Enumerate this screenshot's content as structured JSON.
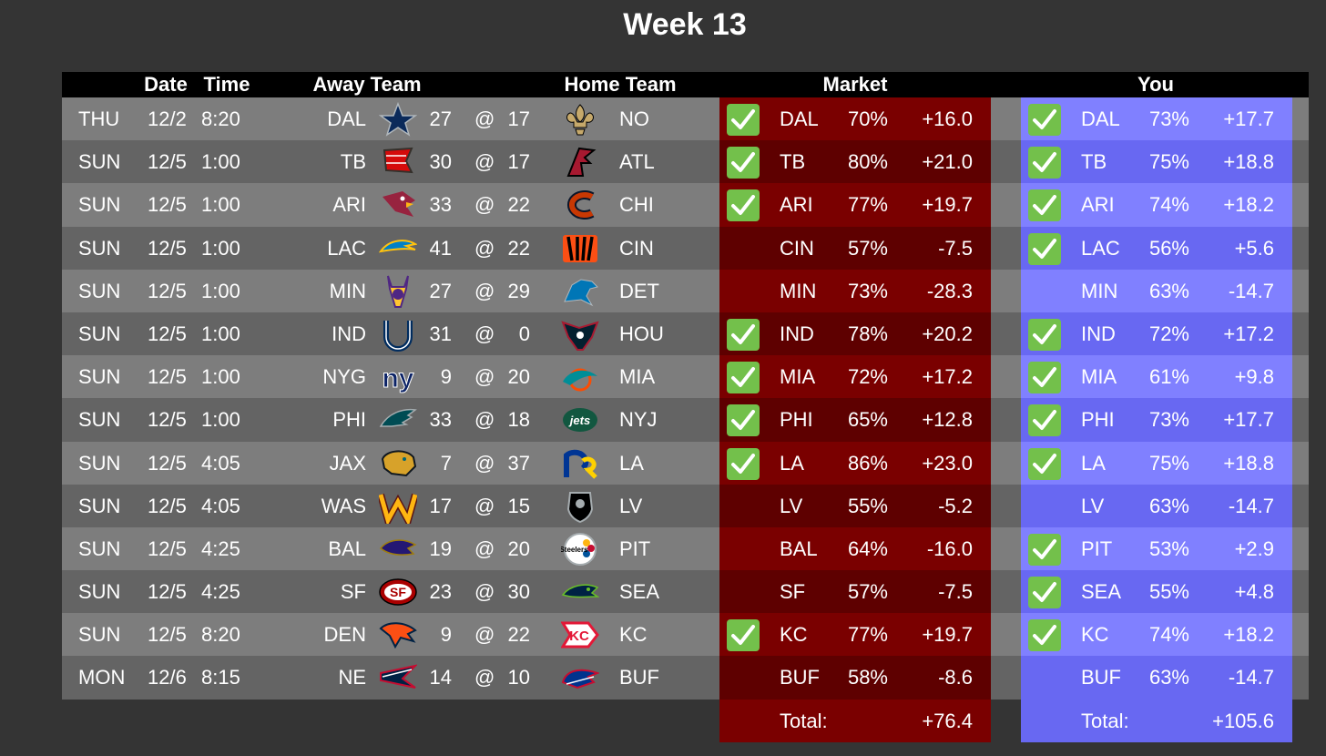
{
  "title": "Week 13",
  "headers": {
    "date": "Date",
    "time": "Time",
    "away": "Away Team",
    "home": "Home Team",
    "market": "Market",
    "you": "You"
  },
  "games": [
    {
      "day": "THU",
      "date": "12/2",
      "time": "8:20",
      "away": "DAL",
      "away_score": "27",
      "at": "@",
      "home_score": "17",
      "home": "NO",
      "away_logo": "star-logo-icon",
      "home_logo": "fleur-de-lis-logo-icon"
    },
    {
      "day": "SUN",
      "date": "12/5",
      "time": "1:00",
      "away": "TB",
      "away_score": "30",
      "at": "@",
      "home_score": "17",
      "home": "ATL",
      "away_logo": "flag-logo-icon",
      "home_logo": "falcon-logo-icon"
    },
    {
      "day": "SUN",
      "date": "12/5",
      "time": "1:00",
      "away": "ARI",
      "away_score": "33",
      "at": "@",
      "home_score": "22",
      "home": "CHI",
      "away_logo": "cardinal-logo-icon",
      "home_logo": "c-letter-logo-icon"
    },
    {
      "day": "SUN",
      "date": "12/5",
      "time": "1:00",
      "away": "LAC",
      "away_score": "41",
      "at": "@",
      "home_score": "22",
      "home": "CIN",
      "away_logo": "bolt-logo-icon",
      "home_logo": "stripes-logo-icon"
    },
    {
      "day": "SUN",
      "date": "12/5",
      "time": "1:00",
      "away": "MIN",
      "away_score": "27",
      "at": "@",
      "home_score": "29",
      "home": "DET",
      "away_logo": "viking-logo-icon",
      "home_logo": "lion-logo-icon"
    },
    {
      "day": "SUN",
      "date": "12/5",
      "time": "1:00",
      "away": "IND",
      "away_score": "31",
      "at": "@",
      "home_score": "0",
      "home": "HOU",
      "away_logo": "horseshoe-logo-icon",
      "home_logo": "bull-logo-icon"
    },
    {
      "day": "SUN",
      "date": "12/5",
      "time": "1:00",
      "away": "NYG",
      "away_score": "9",
      "at": "@",
      "home_score": "20",
      "home": "MIA",
      "away_logo": "ny-letters-logo-icon",
      "home_logo": "dolphin-logo-icon"
    },
    {
      "day": "SUN",
      "date": "12/5",
      "time": "1:00",
      "away": "PHI",
      "away_score": "33",
      "at": "@",
      "home_score": "18",
      "home": "NYJ",
      "away_logo": "eagle-logo-icon",
      "home_logo": "jets-logo-icon"
    },
    {
      "day": "SUN",
      "date": "12/5",
      "time": "4:05",
      "away": "JAX",
      "away_score": "7",
      "at": "@",
      "home_score": "37",
      "home": "LA",
      "away_logo": "jaguar-logo-icon",
      "home_logo": "ram-logo-icon"
    },
    {
      "day": "SUN",
      "date": "12/5",
      "time": "4:05",
      "away": "WAS",
      "away_score": "17",
      "at": "@",
      "home_score": "15",
      "home": "LV",
      "away_logo": "w-letter-logo-icon",
      "home_logo": "shield-logo-icon"
    },
    {
      "day": "SUN",
      "date": "12/5",
      "time": "4:25",
      "away": "BAL",
      "away_score": "19",
      "at": "@",
      "home_score": "20",
      "home": "PIT",
      "away_logo": "raven-logo-icon",
      "home_logo": "steeler-logo-icon"
    },
    {
      "day": "SUN",
      "date": "12/5",
      "time": "4:25",
      "away": "SF",
      "away_score": "23",
      "at": "@",
      "home_score": "30",
      "home": "SEA",
      "away_logo": "sf-oval-logo-icon",
      "home_logo": "seahawk-logo-icon"
    },
    {
      "day": "SUN",
      "date": "12/5",
      "time": "8:20",
      "away": "DEN",
      "away_score": "9",
      "at": "@",
      "home_score": "22",
      "home": "KC",
      "away_logo": "bronco-logo-icon",
      "home_logo": "arrowhead-logo-icon"
    },
    {
      "day": "MON",
      "date": "12/6",
      "time": "8:15",
      "away": "NE",
      "away_score": "14",
      "at": "@",
      "home_score": "10",
      "home": "BUF",
      "away_logo": "patriot-logo-icon",
      "home_logo": "buffalo-logo-icon"
    }
  ],
  "market": {
    "rows": [
      {
        "correct": true,
        "team": "DAL",
        "pct": "70%",
        "pts": "+16.0"
      },
      {
        "correct": true,
        "team": "TB",
        "pct": "80%",
        "pts": "+21.0"
      },
      {
        "correct": true,
        "team": "ARI",
        "pct": "77%",
        "pts": "+19.7"
      },
      {
        "correct": false,
        "team": "CIN",
        "pct": "57%",
        "pts": "-7.5"
      },
      {
        "correct": false,
        "team": "MIN",
        "pct": "73%",
        "pts": "-28.3"
      },
      {
        "correct": true,
        "team": "IND",
        "pct": "78%",
        "pts": "+20.2"
      },
      {
        "correct": true,
        "team": "MIA",
        "pct": "72%",
        "pts": "+17.2"
      },
      {
        "correct": true,
        "team": "PHI",
        "pct": "65%",
        "pts": "+12.8"
      },
      {
        "correct": true,
        "team": "LA",
        "pct": "86%",
        "pts": "+23.0"
      },
      {
        "correct": false,
        "team": "LV",
        "pct": "55%",
        "pts": "-5.2"
      },
      {
        "correct": false,
        "team": "BAL",
        "pct": "64%",
        "pts": "-16.0"
      },
      {
        "correct": false,
        "team": "SF",
        "pct": "57%",
        "pts": "-7.5"
      },
      {
        "correct": true,
        "team": "KC",
        "pct": "77%",
        "pts": "+19.7"
      },
      {
        "correct": false,
        "team": "BUF",
        "pct": "58%",
        "pts": "-8.6"
      }
    ],
    "total_label": "Total:",
    "total": "+76.4"
  },
  "you": {
    "rows": [
      {
        "correct": true,
        "team": "DAL",
        "pct": "73%",
        "pts": "+17.7"
      },
      {
        "correct": true,
        "team": "TB",
        "pct": "75%",
        "pts": "+18.8"
      },
      {
        "correct": true,
        "team": "ARI",
        "pct": "74%",
        "pts": "+18.2"
      },
      {
        "correct": true,
        "team": "LAC",
        "pct": "56%",
        "pts": "+5.6"
      },
      {
        "correct": false,
        "team": "MIN",
        "pct": "63%",
        "pts": "-14.7"
      },
      {
        "correct": true,
        "team": "IND",
        "pct": "72%",
        "pts": "+17.2"
      },
      {
        "correct": true,
        "team": "MIA",
        "pct": "61%",
        "pts": "+9.8"
      },
      {
        "correct": true,
        "team": "PHI",
        "pct": "73%",
        "pts": "+17.7"
      },
      {
        "correct": true,
        "team": "LA",
        "pct": "75%",
        "pts": "+18.8"
      },
      {
        "correct": false,
        "team": "LV",
        "pct": "63%",
        "pts": "-14.7"
      },
      {
        "correct": true,
        "team": "PIT",
        "pct": "53%",
        "pts": "+2.9"
      },
      {
        "correct": true,
        "team": "SEA",
        "pct": "55%",
        "pts": "+4.8"
      },
      {
        "correct": true,
        "team": "KC",
        "pct": "74%",
        "pts": "+18.2"
      },
      {
        "correct": false,
        "team": "BUF",
        "pct": "63%",
        "pts": "-14.7"
      }
    ],
    "total_label": "Total:",
    "total": "+105.6"
  },
  "colors": {
    "background": "#343434",
    "row_light": "#7d7d7d",
    "row_dark": "#646464",
    "market_light": "#7a0000",
    "market_dark": "#5e0000",
    "you_light": "#8080ff",
    "you_dark": "#6868f2",
    "check": "#73c04b"
  }
}
